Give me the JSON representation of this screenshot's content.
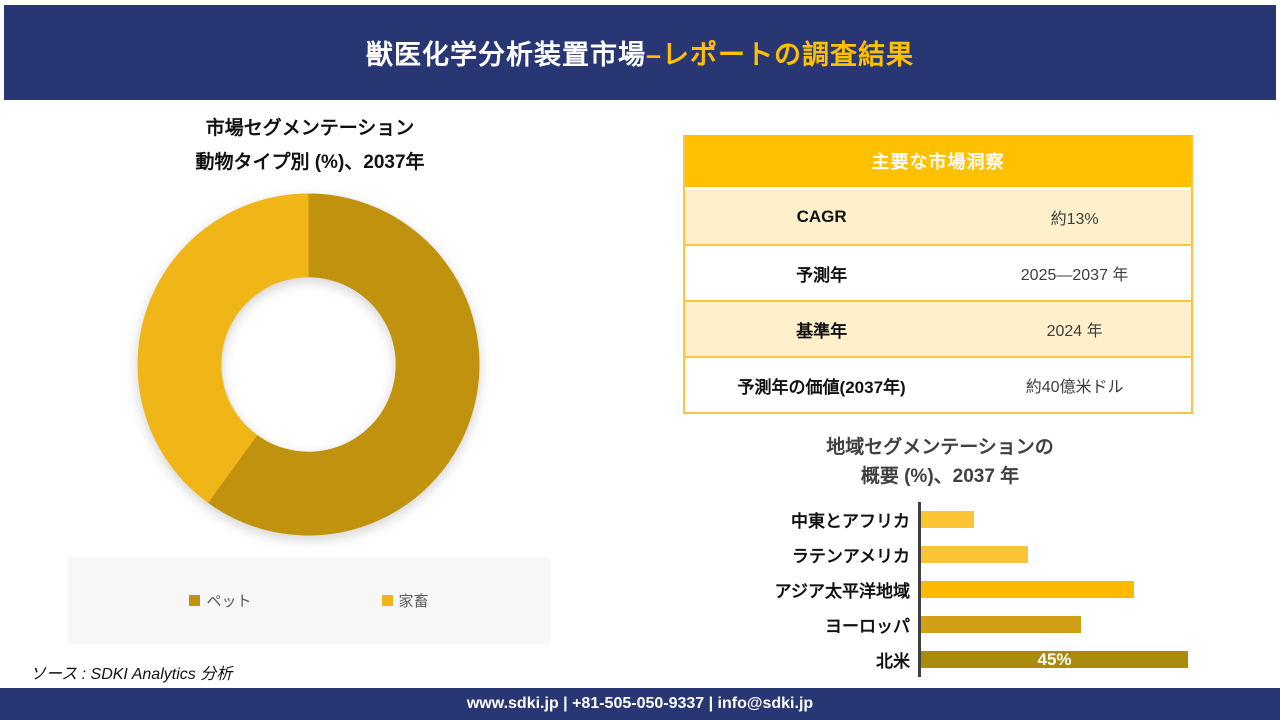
{
  "header": {
    "title_main": "獣医化学分析装置市場",
    "title_accent": "–レポートの調査結果"
  },
  "donut_section": {
    "title_line1": "市場セグメンテーション",
    "title_line2": "動物タイプ別 (%)、2037年"
  },
  "insights_table": {
    "header": "主要な市場洞察",
    "rows": [
      {
        "label": "CAGR",
        "value": "約13%"
      },
      {
        "label": "予測年",
        "value": "2025—2037 年"
      },
      {
        "label": "基準年",
        "value": "2024 年"
      },
      {
        "label": "予測年の価値(2037年)",
        "value": "約40億米ドル"
      }
    ]
  },
  "regional_section": {
    "title_line1": "地域セグメンテーションの",
    "title_line2": "概要 (%)、2037 年"
  },
  "source_note": "ソース : SDKI Analytics 分析",
  "footer": {
    "text": "www.sdki.jp | +81-505-050-9337 | info@sdki.jp"
  },
  "colors": {
    "navy": "#283773",
    "accent_gold": "#FFC000",
    "cream_row": "#FFF0CC",
    "table_border": "#FFC343",
    "donut_pet": "#C1920E",
    "donut_livestock": "#F0B517",
    "axis_line": "#3f3f3f"
  },
  "chart_data": [
    {
      "type": "pie",
      "subtype": "donut",
      "title": "市場セグメンテーション 動物タイプ別 (%)、2037年",
      "labels": [
        "ペット",
        "家畜"
      ],
      "values": [
        60,
        40
      ],
      "colors": [
        "#C1920E",
        "#F0B517"
      ],
      "hole_ratio": 0.51,
      "start_angle_deg": 0,
      "direction": "clockwise",
      "legend_position": "bottom"
    },
    {
      "type": "bar",
      "orientation": "horizontal",
      "title": "地域セグメンテーションの概要 (%)、2037 年",
      "categories": [
        "中東とアフリカ",
        "ラテンアメリカ",
        "アジア太平洋地域",
        "ヨーロッパ",
        "北米"
      ],
      "values": [
        9,
        18,
        36,
        27,
        45
      ],
      "colors": [
        "#FBC434",
        "#FBC434",
        "#FFB900",
        "#D09F15",
        "#A98A0B"
      ],
      "data_labels": [
        "",
        "",
        "",
        "",
        "45%"
      ],
      "xlim": [
        0,
        50
      ],
      "grid": false,
      "legend_position": "none"
    }
  ]
}
